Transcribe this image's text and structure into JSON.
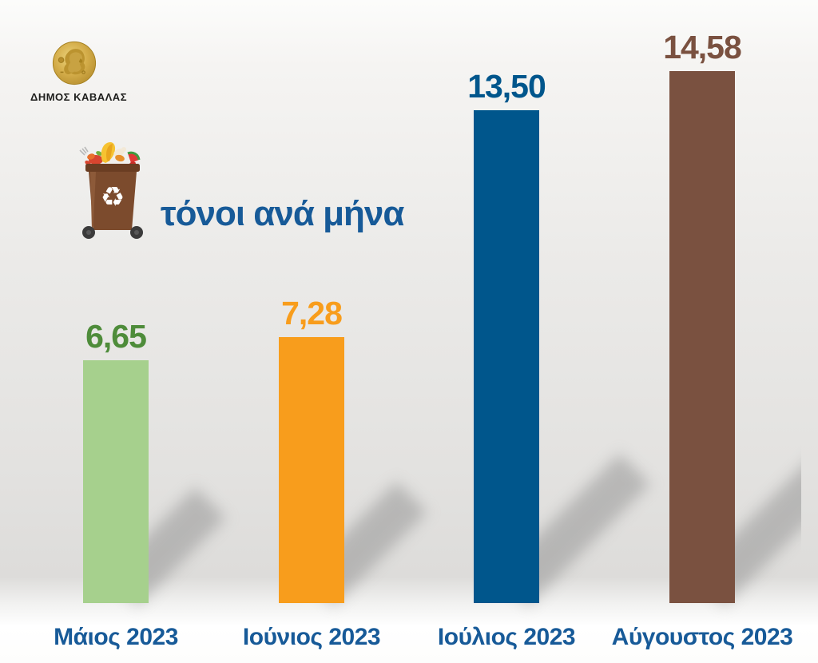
{
  "logo": {
    "org_name": "ΔΗΜΟΣ ΚΑΒΑΛΑΣ",
    "coin_description": "ancient-gold-coin-head-profile",
    "coin_gold": "#c9a23b"
  },
  "title": {
    "text": "τόνοι ανά μήνα",
    "color": "#175a98"
  },
  "bin_icon": {
    "description": "brown-organic-waste-wheelie-bin-with-food-scraps",
    "recycle_symbol": "♻",
    "body_color": "#7c4b2d"
  },
  "chart_data": {
    "type": "bar",
    "title": "τόνοι ανά μήνα",
    "categories": [
      "Μάιος 2023",
      "Ιούνιος 2023",
      "Ιούλιος 2023",
      "Αύγουστος 2023"
    ],
    "values": [
      6.65,
      7.28,
      13.5,
      14.58
    ],
    "value_labels": [
      "6,65",
      "7,28",
      "13,50",
      "14,58"
    ],
    "bar_colors": [
      "#a6d08d",
      "#f89d1c",
      "#00568c",
      "#7a5140"
    ],
    "value_label_colors": [
      "#4e8c3a",
      "#f89d1c",
      "#00568c",
      "#7a5140"
    ],
    "category_label_color": "#175a98",
    "ylim": [
      0,
      16
    ],
    "grid": false,
    "legend": false,
    "bar_shadows": "diagonal-45deg-blurred"
  }
}
